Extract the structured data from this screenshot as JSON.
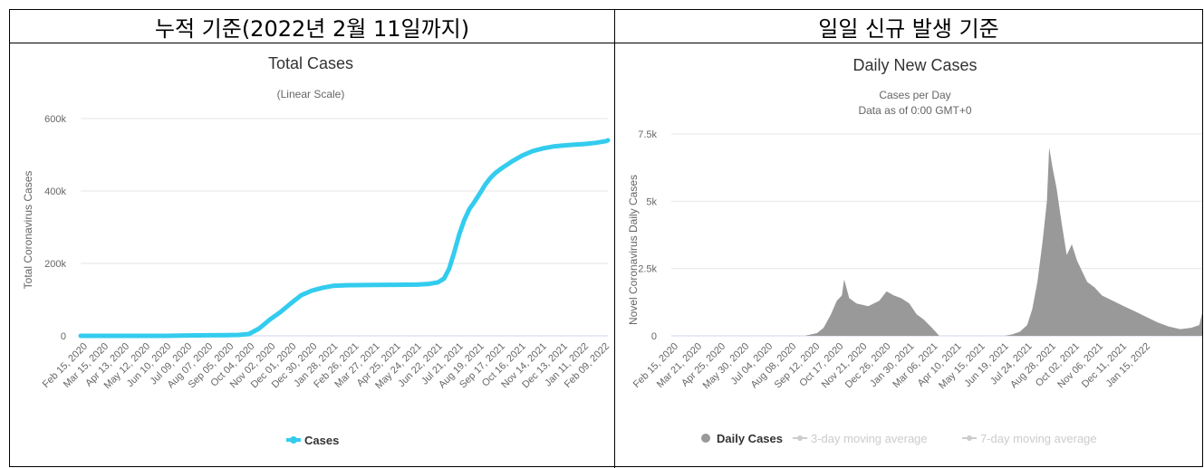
{
  "headers": {
    "left": "누적 기준(2022년 2월 11일까지)",
    "right": "일일 신규 발생 기준"
  },
  "colors": {
    "total_line": "#33ccee",
    "daily_bars": "#999999",
    "legend_inactive": "#cccccc"
  },
  "chart_data": [
    {
      "type": "line",
      "title": "Total Cases",
      "subtitle": "(Linear Scale)",
      "xlabel": "",
      "ylabel": "Total Coronavirus Cases",
      "ylim": [
        0,
        600000
      ],
      "yticks": [
        0,
        200000,
        400000,
        600000
      ],
      "ytick_labels": [
        "0",
        "200k",
        "400k",
        "600k"
      ],
      "xtick_labels": [
        "Feb 15, 2020",
        "Mar 15, 2020",
        "Apr 13, 2020",
        "May 12, 2020",
        "Jun 10, 2020",
        "Jul 09, 2020",
        "Aug 07, 2020",
        "Sep 05, 2020",
        "Oct 04, 2020",
        "Nov 02, 2020",
        "Dec 01, 2020",
        "Dec 30, 2020",
        "Jan 28, 2021",
        "Feb 26, 2021",
        "Mar 27, 2021",
        "Apr 25, 2021",
        "May 24, 2021",
        "Jun 22, 2021",
        "Jul 21, 2021",
        "Aug 19, 2021",
        "Sep 17, 2021",
        "Oct 16, 2021",
        "Nov 14, 2021",
        "Dec 13, 2021",
        "Jan 11, 2022",
        "Feb 09, 2022"
      ],
      "legend": {
        "position": "bottom-center",
        "entries": [
          "Cases"
        ]
      },
      "series": [
        {
          "name": "Cases",
          "x": [
            "2020-02-15",
            "2020-03-15",
            "2020-04-13",
            "2020-05-12",
            "2020-06-10",
            "2020-07-09",
            "2020-08-07",
            "2020-09-05",
            "2020-09-20",
            "2020-10-04",
            "2020-10-18",
            "2020-11-02",
            "2020-11-16",
            "2020-12-01",
            "2020-12-15",
            "2020-12-30",
            "2021-01-14",
            "2021-01-28",
            "2021-02-12",
            "2021-02-26",
            "2021-03-27",
            "2021-04-25",
            "2021-05-24",
            "2021-06-08",
            "2021-06-22",
            "2021-06-30",
            "2021-07-07",
            "2021-07-14",
            "2021-07-21",
            "2021-07-28",
            "2021-08-04",
            "2021-08-11",
            "2021-08-19",
            "2021-08-26",
            "2021-09-02",
            "2021-09-09",
            "2021-09-17",
            "2021-10-02",
            "2021-10-16",
            "2021-10-30",
            "2021-11-14",
            "2021-11-28",
            "2021-12-13",
            "2021-12-27",
            "2022-01-11",
            "2022-01-25",
            "2022-02-09",
            "2022-02-11"
          ],
          "y": [
            0,
            0,
            0,
            0,
            0,
            1000,
            1500,
            2000,
            2500,
            5000,
            20000,
            45000,
            65000,
            90000,
            112000,
            125000,
            133000,
            138000,
            139500,
            140000,
            140500,
            141000,
            141500,
            143000,
            148000,
            158000,
            185000,
            230000,
            280000,
            320000,
            350000,
            370000,
            395000,
            418000,
            436000,
            450000,
            462000,
            482000,
            498000,
            510000,
            518000,
            523000,
            526000,
            528000,
            530000,
            533000,
            538000,
            540000
          ]
        }
      ]
    },
    {
      "type": "bar",
      "title": "Daily New Cases",
      "subtitle": "Cases per Day",
      "subtitle2": "Data as of 0:00 GMT+0",
      "xlabel": "",
      "ylabel": "Novel Coronavirus Daily Cases",
      "ylim": [
        0,
        7500
      ],
      "yticks": [
        0,
        2500,
        5000,
        7500
      ],
      "ytick_labels": [
        "0",
        "2.5k",
        "5k",
        "7.5k"
      ],
      "xtick_labels": [
        "Feb 15, 2020",
        "Mar 21, 2020",
        "Apr 25, 2020",
        "May 30, 2020",
        "Jul 04, 2020",
        "Aug 08, 2020",
        "Sep 12, 2020",
        "Oct 17, 2020",
        "Nov 21, 2020",
        "Dec 26, 2020",
        "Jan 30, 2021",
        "Mar 06, 2021",
        "Apr 10, 2021",
        "May 15, 2021",
        "Jun 19, 2021",
        "Jul 24, 2021",
        "Aug 28, 2021",
        "Oct 02, 2021",
        "Nov 06, 2021",
        "Dec 11, 2021",
        "Jan 15, 2022"
      ],
      "legend": {
        "position": "bottom-center",
        "entries": [
          "Daily Cases",
          "3-day moving average",
          "7-day moving average"
        ]
      },
      "series": [
        {
          "name": "Daily Cases",
          "x": [
            "2020-02-15",
            "2020-08-15",
            "2020-09-01",
            "2020-09-10",
            "2020-09-20",
            "2020-09-28",
            "2020-10-05",
            "2020-10-08",
            "2020-10-15",
            "2020-10-25",
            "2020-11-10",
            "2020-11-25",
            "2020-12-05",
            "2020-12-15",
            "2020-12-25",
            "2021-01-05",
            "2021-01-15",
            "2021-01-25",
            "2021-02-05",
            "2021-02-15",
            "2021-05-15",
            "2021-05-25",
            "2021-06-05",
            "2021-06-15",
            "2021-06-22",
            "2021-06-29",
            "2021-07-06",
            "2021-07-12",
            "2021-07-15",
            "2021-07-20",
            "2021-07-25",
            "2021-08-01",
            "2021-08-08",
            "2021-08-15",
            "2021-08-22",
            "2021-08-29",
            "2021-09-05",
            "2021-09-15",
            "2021-09-25",
            "2021-10-10",
            "2021-10-25",
            "2021-11-10",
            "2021-11-25",
            "2021-12-10",
            "2021-12-25",
            "2022-01-10",
            "2022-01-25",
            "2022-02-05",
            "2022-02-09"
          ],
          "y": [
            0,
            0,
            100,
            300,
            800,
            1300,
            1500,
            2100,
            1400,
            1200,
            1100,
            1300,
            1650,
            1500,
            1400,
            1200,
            800,
            600,
            300,
            0,
            0,
            50,
            150,
            400,
            1000,
            2000,
            3500,
            5000,
            7000,
            6200,
            5500,
            4200,
            3000,
            3400,
            2800,
            2400,
            2000,
            1800,
            1500,
            1300,
            1100,
            900,
            700,
            500,
            350,
            250,
            300,
            400,
            850
          ]
        }
      ]
    }
  ]
}
